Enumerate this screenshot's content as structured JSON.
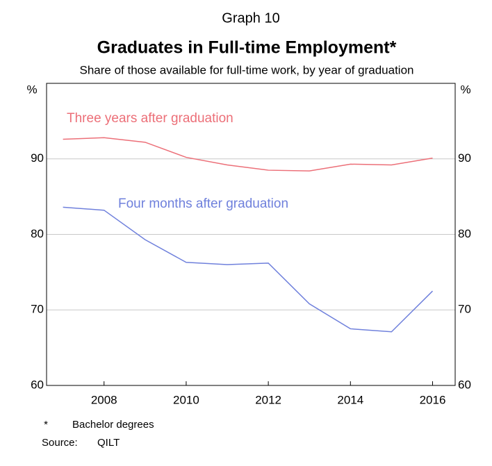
{
  "chart_data": {
    "type": "line",
    "supertitle": "Graph 10",
    "title": "Graduates in Full-time Employment*",
    "subtitle": "Share of those available for full-time work, by year of graduation",
    "y_unit": "%",
    "x": [
      2007,
      2008,
      2009,
      2010,
      2011,
      2012,
      2013,
      2014,
      2015,
      2016
    ],
    "series": [
      {
        "name": "Three years after graduation",
        "color": "#ec6f78",
        "values": [
          92.6,
          92.8,
          92.2,
          90.2,
          89.2,
          88.5,
          88.4,
          89.3,
          89.2,
          90.1
        ]
      },
      {
        "name": "Four months after graduation",
        "color": "#6f80dc",
        "values": [
          83.6,
          83.2,
          79.3,
          76.3,
          76.0,
          76.2,
          70.8,
          67.5,
          67.1,
          72.5
        ]
      }
    ],
    "xlim": [
      2006.6,
      2016.55
    ],
    "xticks": [
      2008,
      2010,
      2012,
      2014,
      2016
    ],
    "ylim": [
      60,
      100
    ],
    "yticks": [
      60,
      70,
      80,
      90
    ],
    "grid": true,
    "footnote_marker": "*",
    "footnote": "Bachelor degrees",
    "source_label": "Source:",
    "source": "QILT"
  }
}
